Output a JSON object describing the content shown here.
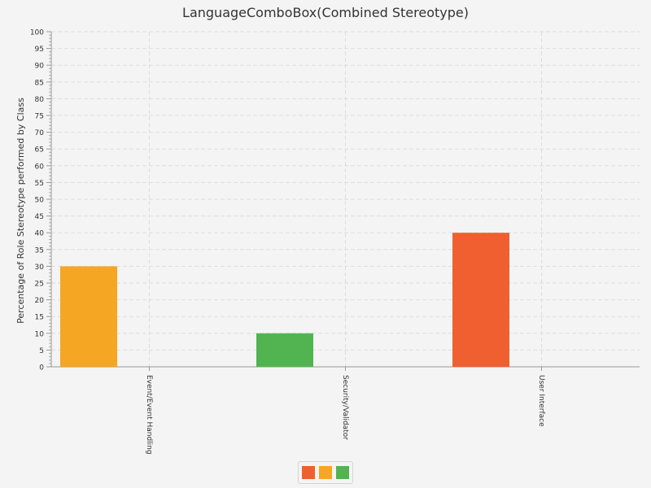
{
  "chart_data": {
    "type": "bar",
    "title": "LanguageComboBox(Combined Stereotype)",
    "ylabel": "Percentage of Role Stereotype performed by Class",
    "xlabel": "",
    "categories": [
      "Event/Event Handling",
      "Security/Validator",
      "User Interface"
    ],
    "bars": [
      {
        "category": "Event/Event Handling",
        "value": 30,
        "color": "#f5a623"
      },
      {
        "category": "Security/Validator",
        "value": 10,
        "color": "#51b451"
      },
      {
        "category": "User Interface",
        "value": 40,
        "color": "#ef5f2f"
      }
    ],
    "ylim": [
      0,
      100
    ],
    "ytick_step": 5,
    "grid": true,
    "legend_colors": [
      "#ef5f2f",
      "#f5a623",
      "#51b451"
    ],
    "legend_position": "bottom-center"
  }
}
